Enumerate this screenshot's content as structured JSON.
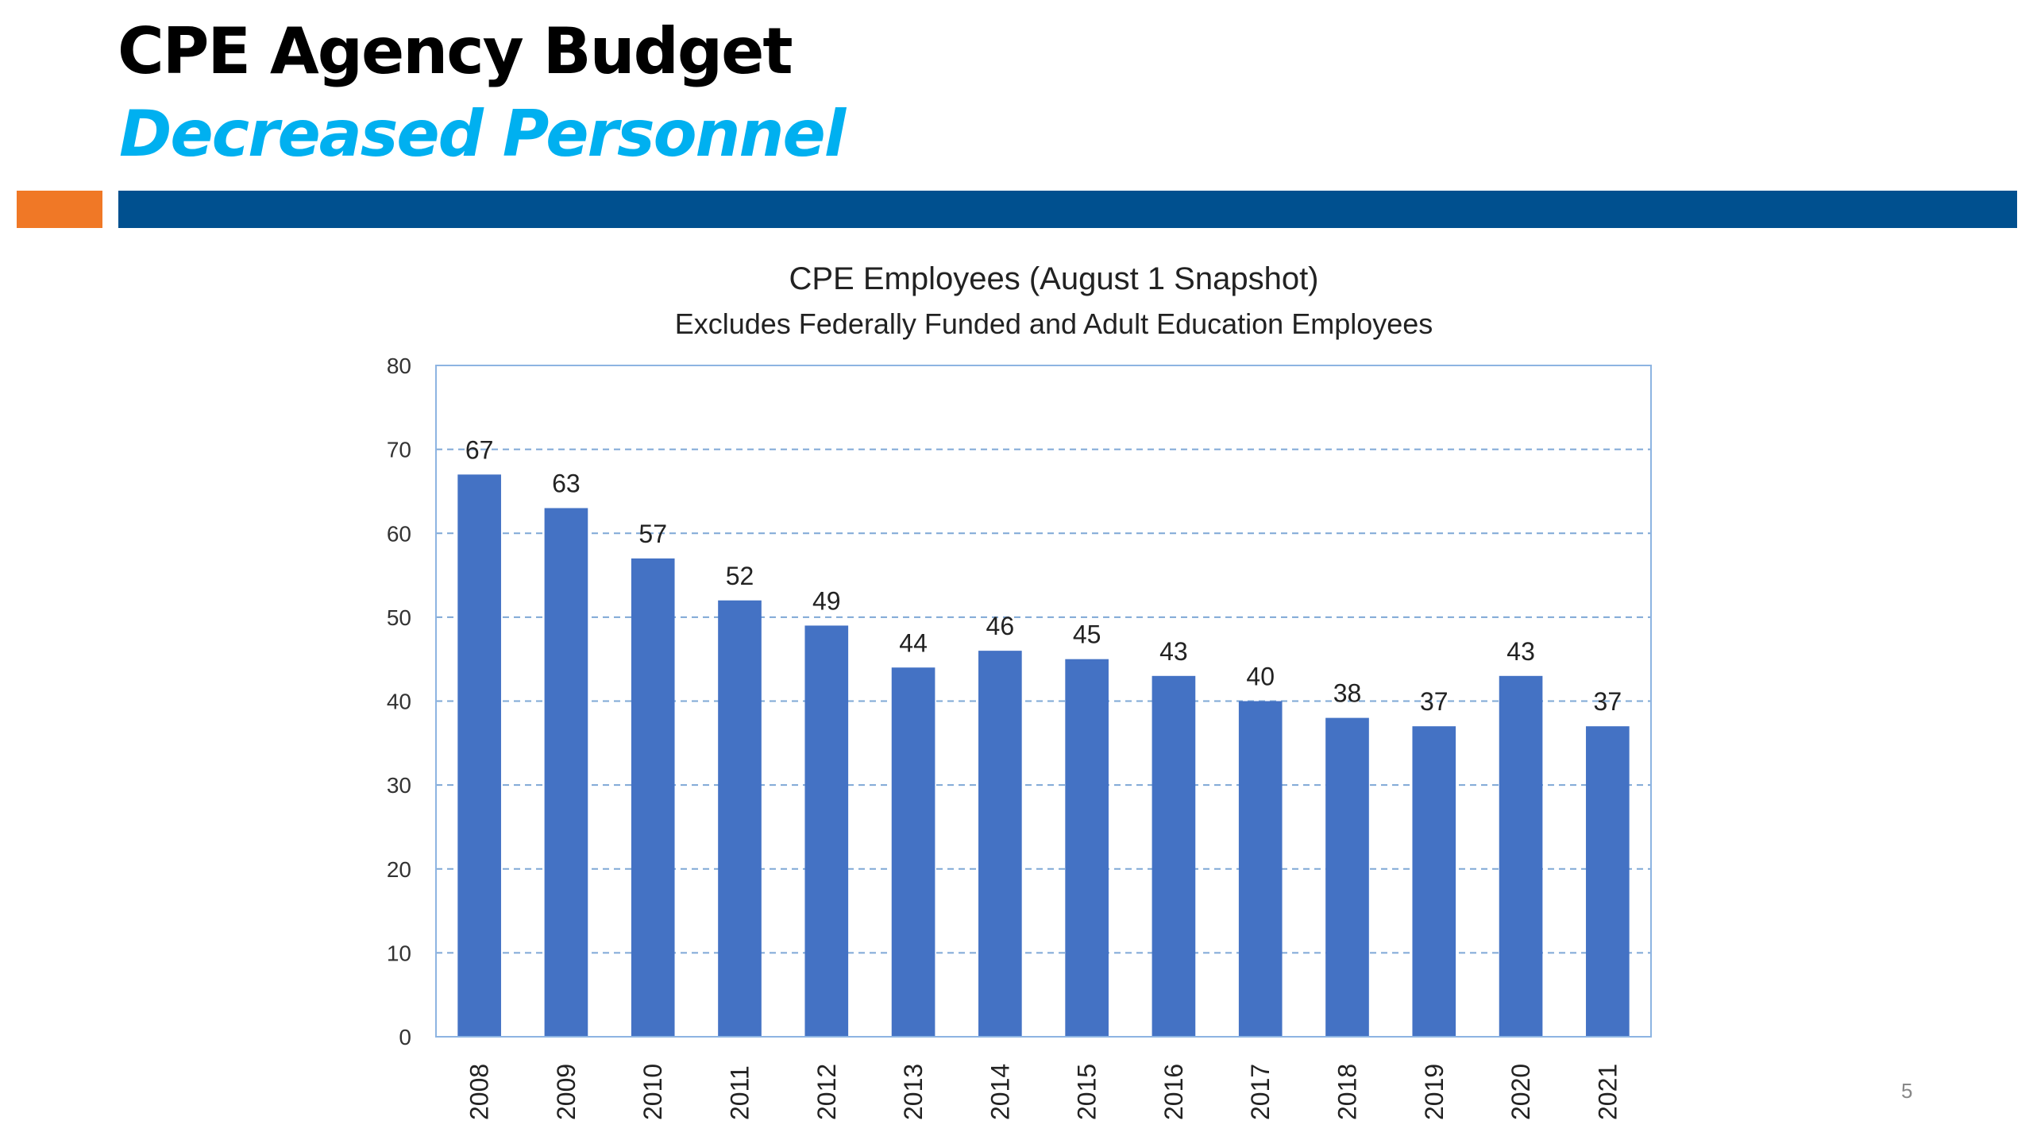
{
  "slide": {
    "title": "CPE Agency Budget",
    "subtitle": "Decreased Personnel",
    "page_number": "5",
    "colors": {
      "title": "#000000",
      "subtitle": "#00b0f0",
      "accent_orange": "#f07826",
      "accent_blue": "#00508f",
      "bar": "#4472c4",
      "gridline": "#7fa8d6"
    }
  },
  "chart_data": {
    "type": "bar",
    "title": "CPE Employees (August 1 Snapshot)",
    "subtitle": "Excludes Federally Funded and Adult Education Employees",
    "xlabel": "",
    "ylabel": "",
    "categories": [
      "2008",
      "2009",
      "2010",
      "2011",
      "2012",
      "2013",
      "2014",
      "2015",
      "2016",
      "2017",
      "2018",
      "2019",
      "2020",
      "2021"
    ],
    "values": [
      67,
      63,
      57,
      52,
      49,
      44,
      46,
      45,
      43,
      40,
      38,
      37,
      43,
      37
    ],
    "ylim": [
      0,
      80
    ],
    "yticks": [
      0,
      10,
      20,
      30,
      40,
      50,
      60,
      70,
      80
    ],
    "grid": true,
    "data_labels": true,
    "legend": "none"
  }
}
